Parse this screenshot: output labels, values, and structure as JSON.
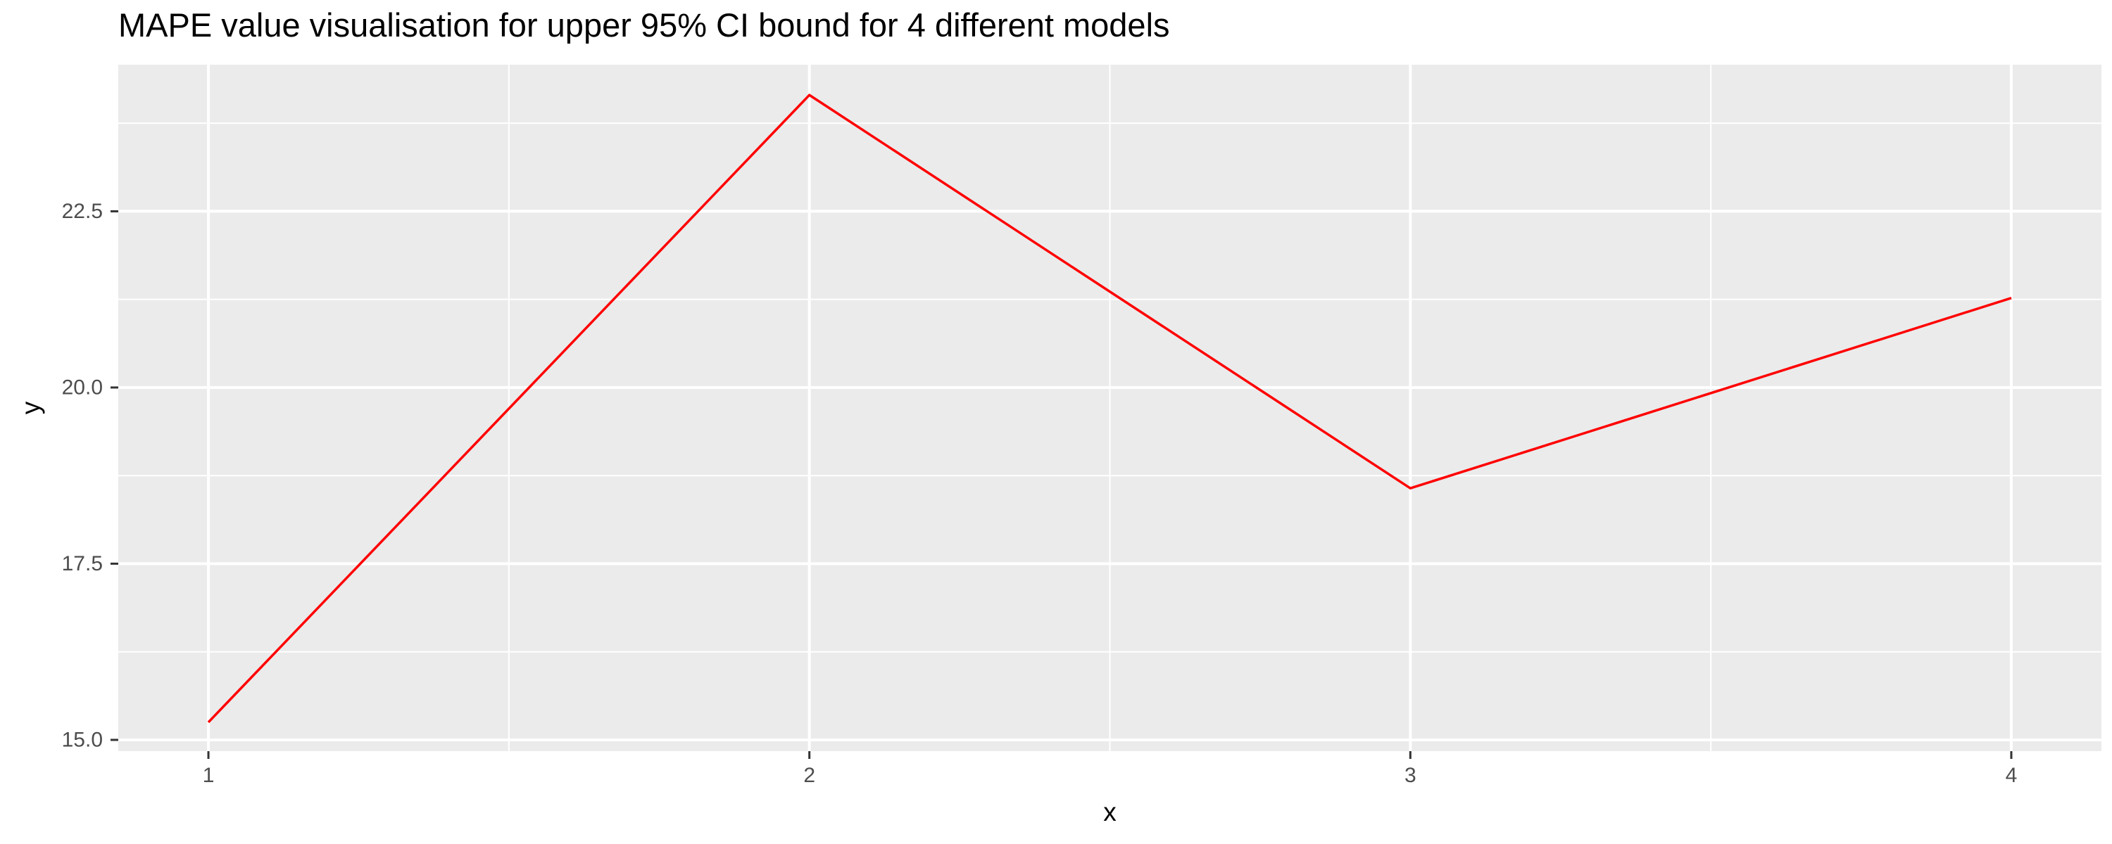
{
  "chart_data": {
    "type": "line",
    "title": "MAPE value visualisation for upper 95% CI bound for 4 different models",
    "xlabel": "x",
    "ylabel": "y",
    "x": [
      1,
      2,
      3,
      4
    ],
    "series": [
      {
        "values": [
          15.25,
          24.15,
          18.57,
          21.27
        ]
      }
    ],
    "xlim": [
      0.85,
      4.15
    ],
    "ylim": [
      14.84,
      24.58
    ],
    "x_ticks": [
      1,
      2,
      3,
      4
    ],
    "x_tick_labels": [
      "1",
      "2",
      "3",
      "4"
    ],
    "y_ticks": [
      15.0,
      17.5,
      20.0,
      22.5
    ],
    "y_tick_labels": [
      "15.0",
      "17.5",
      "20.0",
      "22.5"
    ],
    "grid": true,
    "legend": "none",
    "colors": {
      "line": "#ff0000",
      "panel": "#ebebeb",
      "grid": "#ffffff",
      "text": "#4d4d4d"
    }
  }
}
